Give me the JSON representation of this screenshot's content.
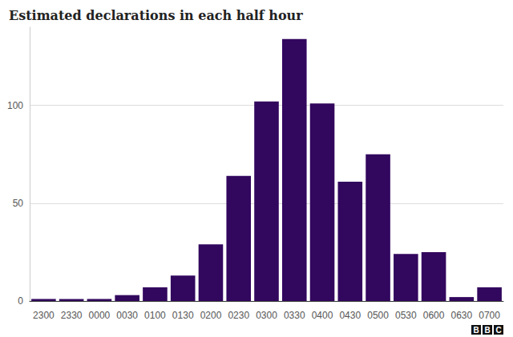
{
  "chart_data": {
    "type": "bar",
    "title": "Estimated declarations in each half hour",
    "categories": [
      "2300",
      "2330",
      "0000",
      "0030",
      "0100",
      "0130",
      "0200",
      "0230",
      "0300",
      "0330",
      "0400",
      "0430",
      "0500",
      "0530",
      "0600",
      "0630",
      "0700"
    ],
    "values": [
      1,
      1,
      1,
      3,
      7,
      13,
      29,
      64,
      102,
      134,
      101,
      61,
      75,
      24,
      25,
      2,
      7
    ],
    "color": "#32075e",
    "ylim": [
      0,
      140
    ],
    "yticks": [
      0,
      50,
      100
    ],
    "grid": true,
    "logo": "BBC"
  }
}
